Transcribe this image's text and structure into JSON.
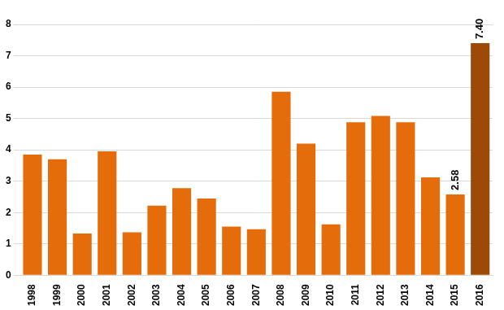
{
  "chart_data": {
    "type": "bar",
    "categories": [
      "1998",
      "1999",
      "2000",
      "2001",
      "2002",
      "2003",
      "2004",
      "2005",
      "2006",
      "2007",
      "2008",
      "2009",
      "2010",
      "2011",
      "2012",
      "2013",
      "2014",
      "2015",
      "2016"
    ],
    "values": [
      3.85,
      3.7,
      1.33,
      3.95,
      1.37,
      2.22,
      2.78,
      2.45,
      1.55,
      1.47,
      5.85,
      4.2,
      1.62,
      4.88,
      5.08,
      4.88,
      3.12,
      2.58,
      7.4
    ],
    "value_labels": [
      null,
      null,
      null,
      null,
      null,
      null,
      null,
      null,
      null,
      null,
      null,
      null,
      null,
      null,
      null,
      null,
      null,
      "2.58",
      "7.40"
    ],
    "colors": [
      "#e46c0a",
      "#e46c0a",
      "#e46c0a",
      "#e46c0a",
      "#e46c0a",
      "#e46c0a",
      "#e46c0a",
      "#e46c0a",
      "#e46c0a",
      "#e46c0a",
      "#e46c0a",
      "#e46c0a",
      "#e46c0a",
      "#e46c0a",
      "#e46c0a",
      "#e46c0a",
      "#e46c0a",
      "#e46c0a",
      "#9c4a06"
    ],
    "ylim": [
      0,
      8
    ],
    "yticks": [
      0,
      1,
      2,
      3,
      4,
      5,
      6,
      7,
      8
    ],
    "grid": true,
    "data_labels": true
  }
}
